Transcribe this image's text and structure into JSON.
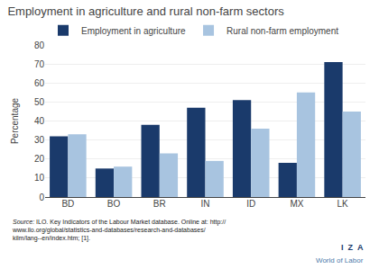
{
  "chart_data": {
    "type": "bar",
    "title": "Employment in agriculture and rural non-farm sectors",
    "categories": [
      "BD",
      "BO",
      "BR",
      "IN",
      "ID",
      "MX",
      "LK"
    ],
    "series": [
      {
        "name": "Employment in agriculture",
        "color": "#1a3a6b",
        "values": [
          32,
          15,
          38,
          47,
          51,
          18,
          71
        ]
      },
      {
        "name": "Rural non-farm employment",
        "color": "#a8c4e0",
        "values": [
          33,
          16,
          23,
          19,
          36,
          55,
          45
        ]
      }
    ],
    "ylabel": "Percentage",
    "ylim": [
      0,
      80
    ],
    "yticks": [
      0,
      10,
      20,
      30,
      40,
      50,
      60,
      70,
      80
    ],
    "grid": true,
    "legend": "upper left",
    "annotations": [
      "Source:",
      " ILO. Key Indicators of the Labour Market database. Online at: http://\nwww.ilo.org/global/statistics-and-databases/research-and-databases/\nkilm/lang--en/index.htm; [1].",
      "I  Z  A",
      "World of Labor"
    ]
  }
}
